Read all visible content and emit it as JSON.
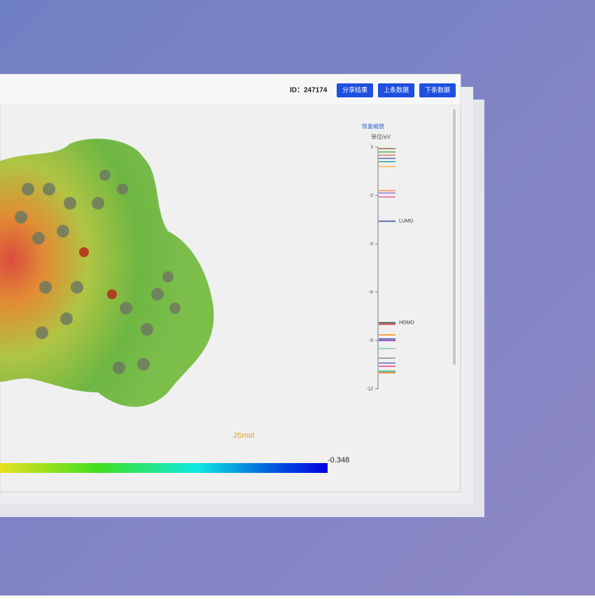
{
  "header": {
    "id_label": "ID：247174",
    "buttons": [
      "分享结果",
      "上条数据",
      "下条数据"
    ]
  },
  "viewer": {
    "credit": "JSmol",
    "colorbar_max": "-0.348"
  },
  "energy_diagram": {
    "reset": "恢复缩放",
    "unit": "单位/eV",
    "ylim": [
      -12,
      3
    ],
    "yticks": [
      3,
      0,
      -3,
      -6,
      -9,
      -12
    ],
    "lumo": {
      "label": "LUMO",
      "value": -1.6
    },
    "homo": {
      "label": "HOMO",
      "value": -7.9
    },
    "levels": [
      {
        "value": 2.9,
        "color": "#8c6d4f"
      },
      {
        "value": 2.7,
        "color": "#4caf50"
      },
      {
        "value": 2.5,
        "color": "#e57373"
      },
      {
        "value": 2.3,
        "color": "#5c6bc0"
      },
      {
        "value": 2.1,
        "color": "#26a69a"
      },
      {
        "value": 1.8,
        "color": "#ffb74d"
      },
      {
        "value": 0.3,
        "color": "#ff8a65"
      },
      {
        "value": 0.15,
        "color": "#9575cd"
      },
      {
        "value": -0.1,
        "color": "#f06292"
      },
      {
        "value": -8.0,
        "color": "#e53935"
      },
      {
        "value": -8.65,
        "color": "#fb8c00"
      },
      {
        "value": -8.9,
        "color": "#3949ab"
      },
      {
        "value": -9.0,
        "color": "#8e24aa"
      },
      {
        "value": -9.5,
        "color": "#80cbc4"
      },
      {
        "value": -10.1,
        "color": "#a1887f"
      },
      {
        "value": -10.4,
        "color": "#5c6bc0"
      },
      {
        "value": -10.6,
        "color": "#ec407a"
      },
      {
        "value": -10.9,
        "color": "#26a69a"
      },
      {
        "value": -11.0,
        "color": "#ef6c00"
      }
    ]
  }
}
